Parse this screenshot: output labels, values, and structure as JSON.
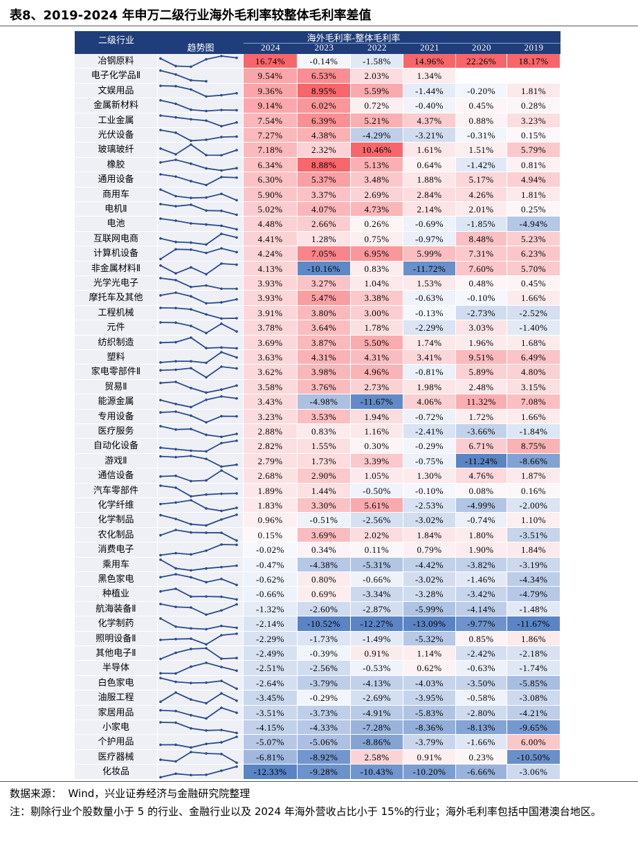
{
  "title": "表8、2019-2024 年申万二级行业海外毛利率较整体毛利率差值",
  "table": {
    "headers": {
      "industry": "二级行业",
      "trend": "趋势图",
      "group": "海外毛利率-整体毛利率",
      "years": [
        "2024",
        "2023",
        "2022",
        "2021",
        "2020",
        "2019"
      ]
    },
    "rows": [
      {
        "name": "冶钢原料",
        "values": [
          16.74,
          -0.14,
          -1.58,
          14.96,
          22.26,
          18.17
        ],
        "value_labels": [
          "16.74%",
          "-0.14%",
          "-1.58%",
          "14.96%",
          "22.26%",
          "18.17%"
        ]
      },
      {
        "name": "电子化学品Ⅱ",
        "values": [
          9.54,
          6.53,
          2.03,
          1.34,
          null,
          null
        ],
        "value_labels": [
          "9.54%",
          "6.53%",
          "2.03%",
          "1.34%",
          null,
          null
        ]
      },
      {
        "name": "文娱用品",
        "values": [
          9.36,
          8.95,
          5.59,
          -1.44,
          -0.2,
          1.81
        ],
        "value_labels": [
          "9.36%",
          "8.95%",
          "5.59%",
          "-1.44%",
          "-0.20%",
          "1.81%"
        ]
      },
      {
        "name": "金属新材料",
        "values": [
          9.14,
          6.02,
          0.72,
          -0.4,
          0.45,
          0.28
        ],
        "value_labels": [
          "9.14%",
          "6.02%",
          "0.72%",
          "-0.40%",
          "0.45%",
          "0.28%"
        ]
      },
      {
        "name": "工业金属",
        "values": [
          7.54,
          6.39,
          5.21,
          4.37,
          0.88,
          3.23
        ],
        "value_labels": [
          "7.54%",
          "6.39%",
          "5.21%",
          "4.37%",
          "0.88%",
          "3.23%"
        ]
      },
      {
        "name": "光伏设备",
        "values": [
          7.27,
          4.38,
          -4.29,
          -3.21,
          -0.31,
          0.15
        ],
        "value_labels": [
          "7.27%",
          "4.38%",
          "-4.29%",
          "-3.21%",
          "-0.31%",
          "0.15%"
        ]
      },
      {
        "name": "玻璃玻纤",
        "values": [
          7.18,
          2.32,
          10.46,
          1.61,
          1.51,
          5.79
        ],
        "value_labels": [
          "7.18%",
          "2.32%",
          "10.46%",
          "1.61%",
          "1.51%",
          "5.79%"
        ]
      },
      {
        "name": "橡胶",
        "values": [
          6.34,
          8.88,
          5.13,
          0.64,
          -1.42,
          0.81
        ],
        "value_labels": [
          "6.34%",
          "8.88%",
          "5.13%",
          "0.64%",
          "-1.42%",
          "0.81%"
        ]
      },
      {
        "name": "通用设备",
        "values": [
          6.3,
          5.37,
          3.48,
          1.88,
          5.17,
          4.94
        ],
        "value_labels": [
          "6.30%",
          "5.37%",
          "3.48%",
          "1.88%",
          "5.17%",
          "4.94%"
        ]
      },
      {
        "name": "商用车",
        "values": [
          5.9,
          3.37,
          2.69,
          2.84,
          4.26,
          1.81
        ],
        "value_labels": [
          "5.90%",
          "3.37%",
          "2.69%",
          "2.84%",
          "4.26%",
          "1.81%"
        ]
      },
      {
        "name": "电机Ⅱ",
        "values": [
          5.02,
          4.07,
          4.73,
          2.14,
          2.01,
          0.25
        ],
        "value_labels": [
          "5.02%",
          "4.07%",
          "4.73%",
          "2.14%",
          "2.01%",
          "0.25%"
        ]
      },
      {
        "name": "电池",
        "values": [
          4.48,
          2.66,
          0.26,
          -0.69,
          -1.85,
          -4.94
        ],
        "value_labels": [
          "4.48%",
          "2.66%",
          "0.26%",
          "-0.69%",
          "-1.85%",
          "-4.94%"
        ]
      },
      {
        "name": "互联网电商",
        "values": [
          4.41,
          1.28,
          0.75,
          -0.97,
          8.48,
          5.23
        ],
        "value_labels": [
          "4.41%",
          "1.28%",
          "0.75%",
          "-0.97%",
          "8.48%",
          "5.23%"
        ]
      },
      {
        "name": "计算机设备",
        "values": [
          4.24,
          7.05,
          6.95,
          5.99,
          7.31,
          6.23
        ],
        "value_labels": [
          "4.24%",
          "7.05%",
          "6.95%",
          "5.99%",
          "7.31%",
          "6.23%"
        ]
      },
      {
        "name": "非金属材料Ⅱ",
        "values": [
          4.13,
          -10.16,
          0.83,
          -11.72,
          7.6,
          5.7
        ],
        "value_labels": [
          "4.13%",
          "-10.16%",
          "0.83%",
          "-11.72%",
          "7.60%",
          "5.70%"
        ]
      },
      {
        "name": "光学光电子",
        "values": [
          3.93,
          3.27,
          1.04,
          1.53,
          0.48,
          0.45
        ],
        "value_labels": [
          "3.93%",
          "3.27%",
          "1.04%",
          "1.53%",
          "0.48%",
          "0.45%"
        ]
      },
      {
        "name": "摩托车及其他",
        "values": [
          3.93,
          5.47,
          3.38,
          -0.63,
          -0.1,
          1.66
        ],
        "value_labels": [
          "3.93%",
          "5.47%",
          "3.38%",
          "-0.63%",
          "-0.10%",
          "1.66%"
        ]
      },
      {
        "name": "工程机械",
        "values": [
          3.91,
          3.8,
          3.0,
          -0.13,
          -2.73,
          -2.52
        ],
        "value_labels": [
          "3.91%",
          "3.80%",
          "3.00%",
          "-0.13%",
          "-2.73%",
          "-2.52%"
        ]
      },
      {
        "name": "元件",
        "values": [
          3.78,
          3.64,
          1.78,
          -2.29,
          3.03,
          -1.4
        ],
        "value_labels": [
          "3.78%",
          "3.64%",
          "1.78%",
          "-2.29%",
          "3.03%",
          "-1.40%"
        ]
      },
      {
        "name": "纺织制造",
        "values": [
          3.69,
          3.87,
          5.5,
          1.74,
          1.96,
          1.68
        ],
        "value_labels": [
          "3.69%",
          "3.87%",
          "5.50%",
          "1.74%",
          "1.96%",
          "1.68%"
        ]
      },
      {
        "name": "塑料",
        "values": [
          3.63,
          4.31,
          4.31,
          3.41,
          9.51,
          6.49
        ],
        "value_labels": [
          "3.63%",
          "4.31%",
          "4.31%",
          "3.41%",
          "9.51%",
          "6.49%"
        ]
      },
      {
        "name": "家电零部件Ⅱ",
        "values": [
          3.62,
          3.98,
          4.96,
          -0.81,
          5.89,
          4.8
        ],
        "value_labels": [
          "3.62%",
          "3.98%",
          "4.96%",
          "-0.81%",
          "5.89%",
          "4.80%"
        ]
      },
      {
        "name": "贸易Ⅱ",
        "values": [
          3.58,
          3.76,
          2.73,
          1.98,
          2.48,
          3.15
        ],
        "value_labels": [
          "3.58%",
          "3.76%",
          "2.73%",
          "1.98%",
          "2.48%",
          "3.15%"
        ]
      },
      {
        "name": "能源金属",
        "values": [
          3.43,
          -4.98,
          -11.67,
          4.06,
          11.32,
          7.08
        ],
        "value_labels": [
          "3.43%",
          "-4.98%",
          "-11.67%",
          "4.06%",
          "11.32%",
          "7.08%"
        ]
      },
      {
        "name": "专用设备",
        "values": [
          3.23,
          3.53,
          1.94,
          -0.72,
          1.72,
          1.66
        ],
        "value_labels": [
          "3.23%",
          "3.53%",
          "1.94%",
          "-0.72%",
          "1.72%",
          "1.66%"
        ]
      },
      {
        "name": "医疗服务",
        "values": [
          2.88,
          0.83,
          1.16,
          -2.41,
          -3.66,
          -1.84
        ],
        "value_labels": [
          "2.88%",
          "0.83%",
          "1.16%",
          "-2.41%",
          "-3.66%",
          "-1.84%"
        ]
      },
      {
        "name": "自动化设备",
        "values": [
          2.82,
          1.55,
          0.3,
          -0.29,
          6.71,
          8.75
        ],
        "value_labels": [
          "2.82%",
          "1.55%",
          "0.30%",
          "-0.29%",
          "6.71%",
          "8.75%"
        ]
      },
      {
        "name": "游戏Ⅱ",
        "values": [
          2.79,
          1.73,
          3.39,
          -0.75,
          -11.24,
          -8.66
        ],
        "value_labels": [
          "2.79%",
          "1.73%",
          "3.39%",
          "-0.75%",
          "-11.24%",
          "-8.66%"
        ]
      },
      {
        "name": "通信设备",
        "values": [
          2.68,
          2.9,
          1.05,
          1.3,
          4.76,
          1.87
        ],
        "value_labels": [
          "2.68%",
          "2.90%",
          "1.05%",
          "1.30%",
          "4.76%",
          "1.87%"
        ]
      },
      {
        "name": "汽车零部件",
        "values": [
          1.89,
          1.44,
          -0.5,
          -0.1,
          0.08,
          0.16
        ],
        "value_labels": [
          "1.89%",
          "1.44%",
          "-0.50%",
          "-0.10%",
          "0.08%",
          "0.16%"
        ]
      },
      {
        "name": "化学纤维",
        "values": [
          1.83,
          3.3,
          5.61,
          -2.53,
          -4.99,
          -2.0
        ],
        "value_labels": [
          "1.83%",
          "3.30%",
          "5.61%",
          "-2.53%",
          "-4.99%",
          "-2.00%"
        ]
      },
      {
        "name": "化学制品",
        "values": [
          0.96,
          -0.51,
          -2.56,
          -3.02,
          -0.74,
          1.1
        ],
        "value_labels": [
          "0.96%",
          "-0.51%",
          "-2.56%",
          "-3.02%",
          "-0.74%",
          "1.10%"
        ]
      },
      {
        "name": "农化制品",
        "values": [
          0.15,
          3.69,
          2.02,
          1.84,
          1.8,
          -3.51
        ],
        "value_labels": [
          "0.15%",
          "3.69%",
          "2.02%",
          "1.84%",
          "1.80%",
          "-3.51%"
        ]
      },
      {
        "name": "消费电子",
        "values": [
          -0.02,
          0.34,
          0.11,
          0.79,
          1.9,
          1.84
        ],
        "value_labels": [
          "-0.02%",
          "0.34%",
          "0.11%",
          "0.79%",
          "1.90%",
          "1.84%"
        ]
      },
      {
        "name": "乘用车",
        "values": [
          -0.47,
          -4.38,
          -5.31,
          -4.42,
          -3.82,
          -3.19
        ],
        "value_labels": [
          "-0.47%",
          "-4.38%",
          "-5.31%",
          "-4.42%",
          "-3.82%",
          "-3.19%"
        ]
      },
      {
        "name": "黑色家电",
        "values": [
          -0.62,
          0.8,
          -0.66,
          -3.02,
          -1.46,
          -4.34
        ],
        "value_labels": [
          "-0.62%",
          "0.80%",
          "-0.66%",
          "-3.02%",
          "-1.46%",
          "-4.34%"
        ]
      },
      {
        "name": "种植业",
        "values": [
          -0.66,
          0.69,
          -3.34,
          -3.28,
          -3.42,
          -4.79
        ],
        "value_labels": [
          "-0.66%",
          "0.69%",
          "-3.34%",
          "-3.28%",
          "-3.42%",
          "-4.79%"
        ]
      },
      {
        "name": "航海装备Ⅱ",
        "values": [
          -1.32,
          -2.6,
          -2.87,
          -5.99,
          -4.14,
          -1.48
        ],
        "value_labels": [
          "-1.32%",
          "-2.60%",
          "-2.87%",
          "-5.99%",
          "-4.14%",
          "-1.48%"
        ]
      },
      {
        "name": "化学制药",
        "values": [
          -2.14,
          -10.52,
          -12.27,
          -13.09,
          -9.77,
          -11.67
        ],
        "value_labels": [
          "-2.14%",
          "-10.52%",
          "-12.27%",
          "-13.09%",
          "-9.77%",
          "-11.67%"
        ]
      },
      {
        "name": "照明设备Ⅱ",
        "values": [
          -2.29,
          -1.73,
          -1.49,
          -5.32,
          0.85,
          1.86
        ],
        "value_labels": [
          "-2.29%",
          "-1.73%",
          "-1.49%",
          "-5.32%",
          "0.85%",
          "1.86%"
        ]
      },
      {
        "name": "其他电子Ⅱ",
        "values": [
          -2.49,
          -0.39,
          0.91,
          1.14,
          -2.42,
          -2.18
        ],
        "value_labels": [
          "-2.49%",
          "-0.39%",
          "0.91%",
          "1.14%",
          "-2.42%",
          "-2.18%"
        ]
      },
      {
        "name": "半导体",
        "values": [
          -2.51,
          -2.56,
          -0.53,
          0.62,
          -0.63,
          -1.74
        ],
        "value_labels": [
          "-2.51%",
          "-2.56%",
          "-0.53%",
          "0.62%",
          "-0.63%",
          "-1.74%"
        ]
      },
      {
        "name": "白色家电",
        "values": [
          -2.64,
          -3.79,
          -4.13,
          -4.03,
          -3.5,
          -5.85
        ],
        "value_labels": [
          "-2.64%",
          "-3.79%",
          "-4.13%",
          "-4.03%",
          "-3.50%",
          "-5.85%"
        ]
      },
      {
        "name": "油服工程",
        "values": [
          -3.45,
          -0.29,
          -2.69,
          -3.95,
          -0.58,
          -3.08
        ],
        "value_labels": [
          "-3.45%",
          "-0.29%",
          "-2.69%",
          "-3.95%",
          "-0.58%",
          "-3.08%"
        ]
      },
      {
        "name": "家居用品",
        "values": [
          -3.51,
          -3.73,
          -4.91,
          -5.83,
          -2.8,
          -4.21
        ],
        "value_labels": [
          "-3.51%",
          "-3.73%",
          "-4.91%",
          "-5.83%",
          "-2.80%",
          "-4.21%"
        ]
      },
      {
        "name": "小家电",
        "values": [
          -4.15,
          -4.33,
          -7.28,
          -8.36,
          -8.13,
          -9.65
        ],
        "value_labels": [
          "-4.15%",
          "-4.33%",
          "-7.28%",
          "-8.36%",
          "-8.13%",
          "-9.65%"
        ]
      },
      {
        "name": "个护用品",
        "values": [
          -5.07,
          -5.06,
          -8.86,
          -3.79,
          -1.66,
          6.0
        ],
        "value_labels": [
          "-5.07%",
          "-5.06%",
          "-8.86%",
          "-3.79%",
          "-1.66%",
          "6.00%"
        ]
      },
      {
        "name": "医疗器械",
        "values": [
          -6.81,
          -8.92,
          2.58,
          0.91,
          0.23,
          -10.5
        ],
        "value_labels": [
          "-6.81%",
          "-8.92%",
          "2.58%",
          "0.91%",
          "0.23%",
          "-10.50%"
        ]
      },
      {
        "name": "化妆品",
        "values": [
          -12.33,
          -9.28,
          -10.43,
          -10.2,
          -6.66,
          -3.06
        ],
        "value_labels": [
          "-12.33%",
          "-9.28%",
          "-10.43%",
          "-10.20%",
          "-6.66%",
          "-3.06%"
        ]
      }
    ]
  },
  "footer": {
    "source": "数据来源：  Wind，兴业证券经济与金融研究院整理",
    "note": "注：剔除行业个股数量小于 5 的行业、金融行业以及 2024 年海外营收占比小于 15%的行业；海外毛利率包括中国港澳台地区。"
  }
}
